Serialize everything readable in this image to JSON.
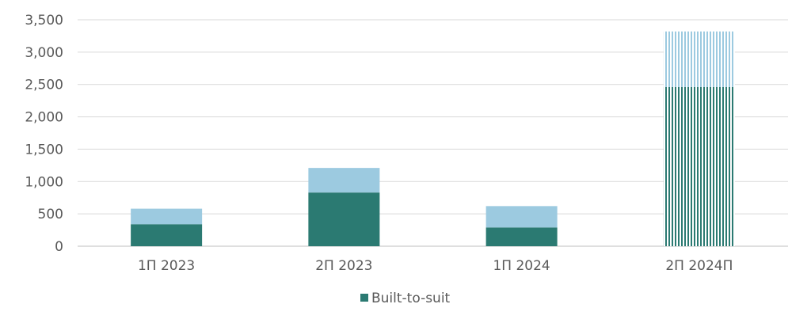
{
  "chart_data": {
    "type": "bar",
    "stacked": true,
    "categories": [
      "1П 2023",
      "2П 2023",
      "1П 2024",
      "2П 2024П"
    ],
    "series": [
      {
        "name": "Built-to-suit",
        "values": [
          340,
          830,
          290,
          2460
        ],
        "color": "#2b7a72",
        "forecast_pattern": "vertical-stripes"
      },
      {
        "values": [
          240,
          380,
          330,
          860
        ],
        "color": "#9ccae0",
        "forecast_pattern": "vertical-stripes"
      }
    ],
    "forecast_categories": [
      "2П 2024П"
    ],
    "ylim": [
      0,
      3500
    ],
    "yticks": [
      0,
      500,
      1000,
      1500,
      2000,
      2500,
      3000,
      3500
    ],
    "ytick_labels": [
      "0",
      "500",
      "1,000",
      "1,500",
      "2,000",
      "2,500",
      "3,000",
      "3,500"
    ],
    "grid": true,
    "legend_position": "bottom",
    "legend_entries": [
      "Built-to-suit"
    ],
    "gridline_color": "#d9d9d9",
    "axis_color": "#bfbfbf",
    "text_color": "#595959"
  }
}
